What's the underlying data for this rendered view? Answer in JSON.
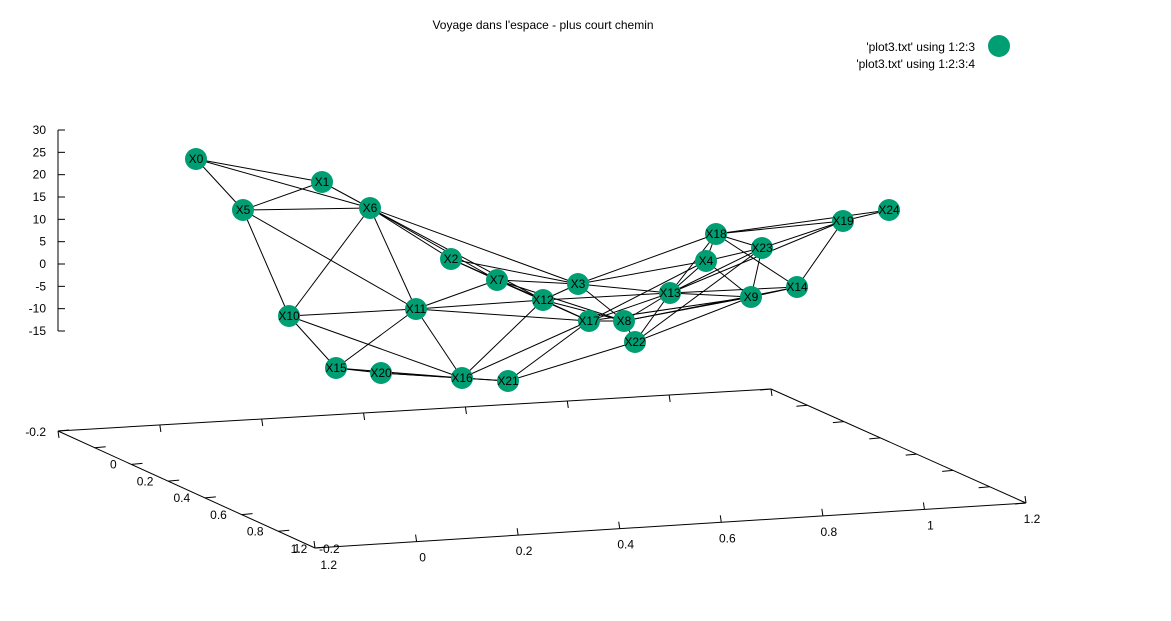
{
  "chart_data": {
    "type": "scatter",
    "title": "Voyage dans l'espace - plus court chemin",
    "series": [
      {
        "name": "'plot3.txt' using 1:2:3",
        "color": "#009e73"
      },
      {
        "name": "'plot3.txt' using 1:2:3:4",
        "color": "#000000"
      }
    ],
    "z_ticks": [
      "30",
      "25",
      "20",
      "15",
      "10",
      "5",
      "0",
      "-5",
      "-10",
      "-15"
    ],
    "base_z_label": "-0.2",
    "y_ticks": [
      "0",
      "0.2",
      "0.4",
      "0.6",
      "0.8",
      "1",
      "1.2"
    ],
    "y_axis_start": "-0.2",
    "x_ticks": [
      "0",
      "0.2",
      "0.4",
      "0.6",
      "0.8",
      "1",
      "1.2"
    ],
    "x_axis_start": "-0.2",
    "nodes": [
      {
        "label": "X0",
        "sx": 196,
        "sy": 159
      },
      {
        "label": "X1",
        "sx": 322,
        "sy": 182
      },
      {
        "label": "X2",
        "sx": 451,
        "sy": 259
      },
      {
        "label": "X3",
        "sx": 578,
        "sy": 284
      },
      {
        "label": "X4",
        "sx": 706,
        "sy": 261
      },
      {
        "label": "X5",
        "sx": 243,
        "sy": 210
      },
      {
        "label": "X6",
        "sx": 370,
        "sy": 208
      },
      {
        "label": "X7",
        "sx": 497,
        "sy": 280
      },
      {
        "label": "X8",
        "sx": 624,
        "sy": 321
      },
      {
        "label": "X9",
        "sx": 751,
        "sy": 297
      },
      {
        "label": "X10",
        "sx": 289,
        "sy": 316
      },
      {
        "label": "X11",
        "sx": 416,
        "sy": 309
      },
      {
        "label": "X12",
        "sx": 543,
        "sy": 300
      },
      {
        "label": "X13",
        "sx": 670,
        "sy": 293
      },
      {
        "label": "X14",
        "sx": 797,
        "sy": 287
      },
      {
        "label": "X15",
        "sx": 336,
        "sy": 368
      },
      {
        "label": "X16",
        "sx": 462,
        "sy": 378
      },
      {
        "label": "X17",
        "sx": 589,
        "sy": 321
      },
      {
        "label": "X18",
        "sx": 716,
        "sy": 234
      },
      {
        "label": "X19",
        "sx": 843,
        "sy": 221
      },
      {
        "label": "X20",
        "sx": 381,
        "sy": 373
      },
      {
        "label": "X21",
        "sx": 508,
        "sy": 381
      },
      {
        "label": "X22",
        "sx": 635,
        "sy": 342
      },
      {
        "label": "X23",
        "sx": 762,
        "sy": 248
      },
      {
        "label": "X24",
        "sx": 889,
        "sy": 210
      }
    ],
    "edges": [
      [
        "X0",
        "X1"
      ],
      [
        "X0",
        "X5"
      ],
      [
        "X0",
        "X6"
      ],
      [
        "X1",
        "X5"
      ],
      [
        "X1",
        "X6"
      ],
      [
        "X5",
        "X6"
      ],
      [
        "X5",
        "X10"
      ],
      [
        "X5",
        "X11"
      ],
      [
        "X6",
        "X2"
      ],
      [
        "X6",
        "X7"
      ],
      [
        "X6",
        "X12"
      ],
      [
        "X6",
        "X3"
      ],
      [
        "X6",
        "X11"
      ],
      [
        "X6",
        "X10"
      ],
      [
        "X2",
        "X7"
      ],
      [
        "X2",
        "X3"
      ],
      [
        "X2",
        "X12"
      ],
      [
        "X7",
        "X12"
      ],
      [
        "X7",
        "X3"
      ],
      [
        "X7",
        "X11"
      ],
      [
        "X7",
        "X17"
      ],
      [
        "X7",
        "X8"
      ],
      [
        "X3",
        "X12"
      ],
      [
        "X3",
        "X13"
      ],
      [
        "X3",
        "X8"
      ],
      [
        "X3",
        "X18"
      ],
      [
        "X3",
        "X4"
      ],
      [
        "X11",
        "X12"
      ],
      [
        "X11",
        "X10"
      ],
      [
        "X11",
        "X16"
      ],
      [
        "X11",
        "X15"
      ],
      [
        "X11",
        "X17"
      ],
      [
        "X10",
        "X15"
      ],
      [
        "X10",
        "X16"
      ],
      [
        "X15",
        "X20"
      ],
      [
        "X20",
        "X16"
      ],
      [
        "X15",
        "X16"
      ],
      [
        "X16",
        "X21"
      ],
      [
        "X20",
        "X21"
      ],
      [
        "X16",
        "X12"
      ],
      [
        "X16",
        "X17"
      ],
      [
        "X21",
        "X17"
      ],
      [
        "X21",
        "X22"
      ],
      [
        "X12",
        "X17"
      ],
      [
        "X12",
        "X8"
      ],
      [
        "X17",
        "X8"
      ],
      [
        "X17",
        "X13"
      ],
      [
        "X17",
        "X4"
      ],
      [
        "X8",
        "X13"
      ],
      [
        "X8",
        "X9"
      ],
      [
        "X8",
        "X22"
      ],
      [
        "X8",
        "X14"
      ],
      [
        "X13",
        "X4"
      ],
      [
        "X13",
        "X18"
      ],
      [
        "X13",
        "X9"
      ],
      [
        "X13",
        "X14"
      ],
      [
        "X13",
        "X23"
      ],
      [
        "X13",
        "X19"
      ],
      [
        "X4",
        "X18"
      ],
      [
        "X4",
        "X9"
      ],
      [
        "X4",
        "X23"
      ],
      [
        "X18",
        "X23"
      ],
      [
        "X18",
        "X19"
      ],
      [
        "X18",
        "X24"
      ],
      [
        "X18",
        "X14"
      ],
      [
        "X23",
        "X19"
      ],
      [
        "X23",
        "X9"
      ],
      [
        "X19",
        "X24"
      ],
      [
        "X19",
        "X14"
      ],
      [
        "X9",
        "X14"
      ],
      [
        "X22",
        "X9"
      ],
      [
        "X22",
        "X23"
      ],
      [
        "X22",
        "X13"
      ],
      [
        "X17",
        "X9"
      ],
      [
        "X12",
        "X13"
      ]
    ]
  }
}
